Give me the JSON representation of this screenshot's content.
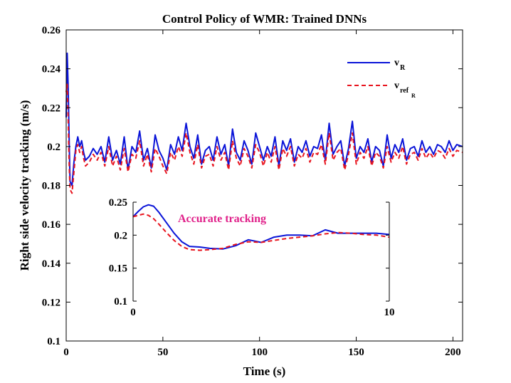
{
  "chart_data": {
    "type": "line",
    "title": "Control Policy of WMR: Trained DNNs",
    "xlabel": "Time (s)",
    "ylabel": "Right side velocity tracking (m/s)",
    "xlim": [
      0,
      205
    ],
    "ylim": [
      0.1,
      0.26
    ],
    "xticks": [
      0,
      50,
      100,
      150,
      200
    ],
    "xtick_labels": [
      "0",
      "50",
      "100",
      "150",
      "200"
    ],
    "yticks": [
      0.1,
      0.12,
      0.14,
      0.16,
      0.18,
      0.2,
      0.22,
      0.24,
      0.26
    ],
    "ytick_labels": [
      "0.1",
      "0.12",
      "0.14",
      "0.16",
      "0.18",
      "0.2",
      "0.22",
      "0.24",
      "0.26"
    ],
    "colors": {
      "v_R": "#0a14d8",
      "v_ref_R": "#e8141e",
      "annotation": "#e0218a"
    },
    "series": [
      {
        "name": "v_R",
        "legend_main": "v",
        "legend_sub": "R",
        "x": [
          0,
          0.5,
          1,
          1.5,
          2,
          3,
          4,
          5,
          6,
          7,
          8,
          9,
          10,
          12,
          14,
          16,
          18,
          20,
          22,
          24,
          26,
          28,
          30,
          32,
          34,
          36,
          38,
          40,
          42,
          44,
          46,
          48,
          50,
          52,
          54,
          56,
          58,
          60,
          62,
          64,
          66,
          68,
          70,
          72,
          74,
          76,
          78,
          80,
          82,
          84,
          86,
          88,
          90,
          92,
          94,
          96,
          98,
          100,
          102,
          104,
          106,
          108,
          110,
          112,
          114,
          116,
          118,
          120,
          122,
          124,
          126,
          128,
          130,
          132,
          134,
          136,
          138,
          140,
          142,
          144,
          146,
          148,
          150,
          152,
          154,
          156,
          158,
          160,
          162,
          164,
          166,
          168,
          170,
          172,
          174,
          176,
          178,
          180,
          182,
          184,
          186,
          188,
          190,
          192,
          194,
          196,
          198,
          200,
          202,
          205
        ],
        "values": [
          0.215,
          0.248,
          0.232,
          0.205,
          0.182,
          0.18,
          0.192,
          0.2,
          0.205,
          0.2,
          0.203,
          0.197,
          0.193,
          0.195,
          0.199,
          0.196,
          0.2,
          0.192,
          0.205,
          0.193,
          0.198,
          0.191,
          0.205,
          0.188,
          0.2,
          0.197,
          0.208,
          0.193,
          0.199,
          0.189,
          0.206,
          0.198,
          0.194,
          0.188,
          0.201,
          0.196,
          0.205,
          0.198,
          0.212,
          0.2,
          0.194,
          0.206,
          0.191,
          0.198,
          0.2,
          0.193,
          0.205,
          0.196,
          0.201,
          0.19,
          0.209,
          0.197,
          0.193,
          0.203,
          0.198,
          0.191,
          0.207,
          0.2,
          0.193,
          0.2,
          0.195,
          0.205,
          0.19,
          0.203,
          0.198,
          0.204,
          0.192,
          0.2,
          0.197,
          0.203,
          0.195,
          0.2,
          0.199,
          0.206,
          0.193,
          0.212,
          0.196,
          0.2,
          0.203,
          0.19,
          0.199,
          0.213,
          0.194,
          0.2,
          0.197,
          0.204,
          0.192,
          0.2,
          0.198,
          0.19,
          0.206,
          0.194,
          0.201,
          0.197,
          0.204,
          0.193,
          0.199,
          0.2,
          0.195,
          0.203,
          0.197,
          0.2,
          0.196,
          0.201,
          0.2,
          0.197,
          0.203,
          0.198,
          0.201,
          0.2
        ]
      },
      {
        "name": "v_ref_R",
        "legend_main": "v",
        "legend_sub": "ref",
        "legend_subsub": "R",
        "x": [
          0,
          0.5,
          1,
          1.5,
          2,
          3,
          4,
          5,
          6,
          7,
          8,
          9,
          10,
          12,
          14,
          16,
          18,
          20,
          22,
          24,
          26,
          28,
          30,
          32,
          34,
          36,
          38,
          40,
          42,
          44,
          46,
          48,
          50,
          52,
          54,
          56,
          58,
          60,
          62,
          64,
          66,
          68,
          70,
          72,
          74,
          76,
          78,
          80,
          82,
          84,
          86,
          88,
          90,
          92,
          94,
          96,
          98,
          100,
          102,
          104,
          106,
          108,
          110,
          112,
          114,
          116,
          118,
          120,
          122,
          124,
          126,
          128,
          130,
          132,
          134,
          136,
          138,
          140,
          142,
          144,
          146,
          148,
          150,
          152,
          154,
          156,
          158,
          160,
          162,
          164,
          166,
          168,
          170,
          172,
          174,
          176,
          178,
          180,
          182,
          184,
          186,
          188,
          190,
          192,
          194,
          196,
          198,
          200,
          202,
          205
        ],
        "values": [
          0.228,
          0.232,
          0.215,
          0.192,
          0.178,
          0.176,
          0.187,
          0.198,
          0.201,
          0.197,
          0.2,
          0.194,
          0.19,
          0.192,
          0.196,
          0.193,
          0.197,
          0.19,
          0.2,
          0.19,
          0.195,
          0.188,
          0.199,
          0.187,
          0.196,
          0.194,
          0.203,
          0.19,
          0.196,
          0.187,
          0.199,
          0.195,
          0.19,
          0.186,
          0.197,
          0.193,
          0.2,
          0.195,
          0.207,
          0.197,
          0.191,
          0.201,
          0.189,
          0.195,
          0.196,
          0.19,
          0.2,
          0.193,
          0.197,
          0.188,
          0.203,
          0.194,
          0.19,
          0.199,
          0.195,
          0.189,
          0.201,
          0.197,
          0.19,
          0.197,
          0.192,
          0.2,
          0.188,
          0.199,
          0.195,
          0.2,
          0.19,
          0.196,
          0.194,
          0.199,
          0.192,
          0.197,
          0.196,
          0.201,
          0.191,
          0.207,
          0.193,
          0.197,
          0.199,
          0.188,
          0.196,
          0.207,
          0.191,
          0.197,
          0.194,
          0.2,
          0.19,
          0.197,
          0.195,
          0.189,
          0.2,
          0.192,
          0.197,
          0.194,
          0.2,
          0.191,
          0.196,
          0.197,
          0.193,
          0.199,
          0.194,
          0.197,
          0.194,
          0.198,
          0.197,
          0.194,
          0.199,
          0.195,
          0.198,
          0.197
        ]
      }
    ],
    "inset": {
      "xlim": [
        0,
        10
      ],
      "ylim": [
        0.1,
        0.25
      ],
      "xticks": [
        0,
        10
      ],
      "xtick_labels": [
        "0",
        "10"
      ],
      "yticks": [
        0.1,
        0.15,
        0.2,
        0.25
      ],
      "ytick_labels": [
        "0.1",
        "0.15",
        "0.2",
        "0.25"
      ],
      "annotation": "Accurate tracking",
      "series": [
        {
          "name": "v_R",
          "x": [
            0,
            0.2,
            0.4,
            0.6,
            0.8,
            1,
            1.3,
            1.6,
            1.9,
            2.2,
            2.6,
            3,
            3.5,
            4,
            4.5,
            5,
            5.5,
            6,
            6.5,
            7,
            7.5,
            8,
            8.5,
            9,
            9.5,
            10
          ],
          "values": [
            0.228,
            0.236,
            0.243,
            0.246,
            0.244,
            0.235,
            0.219,
            0.203,
            0.19,
            0.183,
            0.182,
            0.18,
            0.179,
            0.184,
            0.193,
            0.189,
            0.197,
            0.2,
            0.2,
            0.199,
            0.208,
            0.203,
            0.203,
            0.203,
            0.203,
            0.201
          ]
        },
        {
          "name": "v_ref_R",
          "x": [
            0,
            0.2,
            0.4,
            0.6,
            0.8,
            1,
            1.3,
            1.6,
            1.9,
            2.2,
            2.6,
            3,
            3.5,
            4,
            4.5,
            5,
            5.5,
            6,
            6.5,
            7,
            7.5,
            8,
            8.5,
            9,
            9.5,
            10
          ],
          "values": [
            0.228,
            0.23,
            0.232,
            0.23,
            0.225,
            0.217,
            0.204,
            0.192,
            0.183,
            0.178,
            0.177,
            0.178,
            0.18,
            0.186,
            0.19,
            0.189,
            0.192,
            0.195,
            0.197,
            0.199,
            0.202,
            0.204,
            0.203,
            0.201,
            0.2,
            0.197
          ]
        }
      ]
    }
  }
}
